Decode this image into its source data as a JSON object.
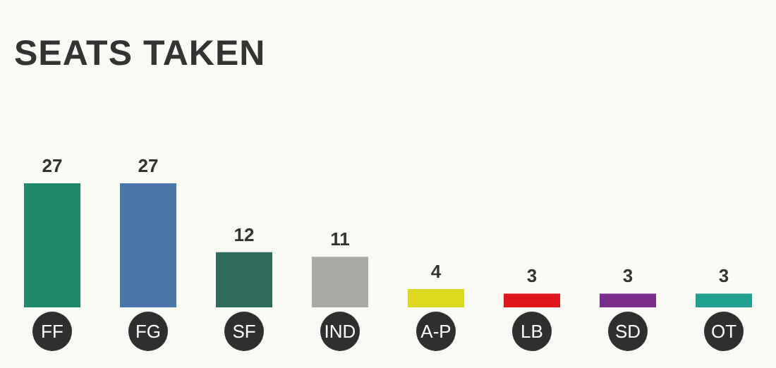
{
  "chart_data": {
    "type": "bar",
    "title": "SEATS TAKEN",
    "categories": [
      "FF",
      "FG",
      "SF",
      "IND",
      "A-P",
      "LB",
      "SD",
      "OT"
    ],
    "values": [
      27,
      27,
      12,
      11,
      4,
      3,
      3,
      3
    ],
    "colors": [
      "#1f8a6b",
      "#4a78a8",
      "#2e6b5c",
      "#a9a9a5",
      "#dcd81e",
      "#e0161c",
      "#7b2d8e",
      "#22a08f"
    ],
    "data_labels": true
  }
}
